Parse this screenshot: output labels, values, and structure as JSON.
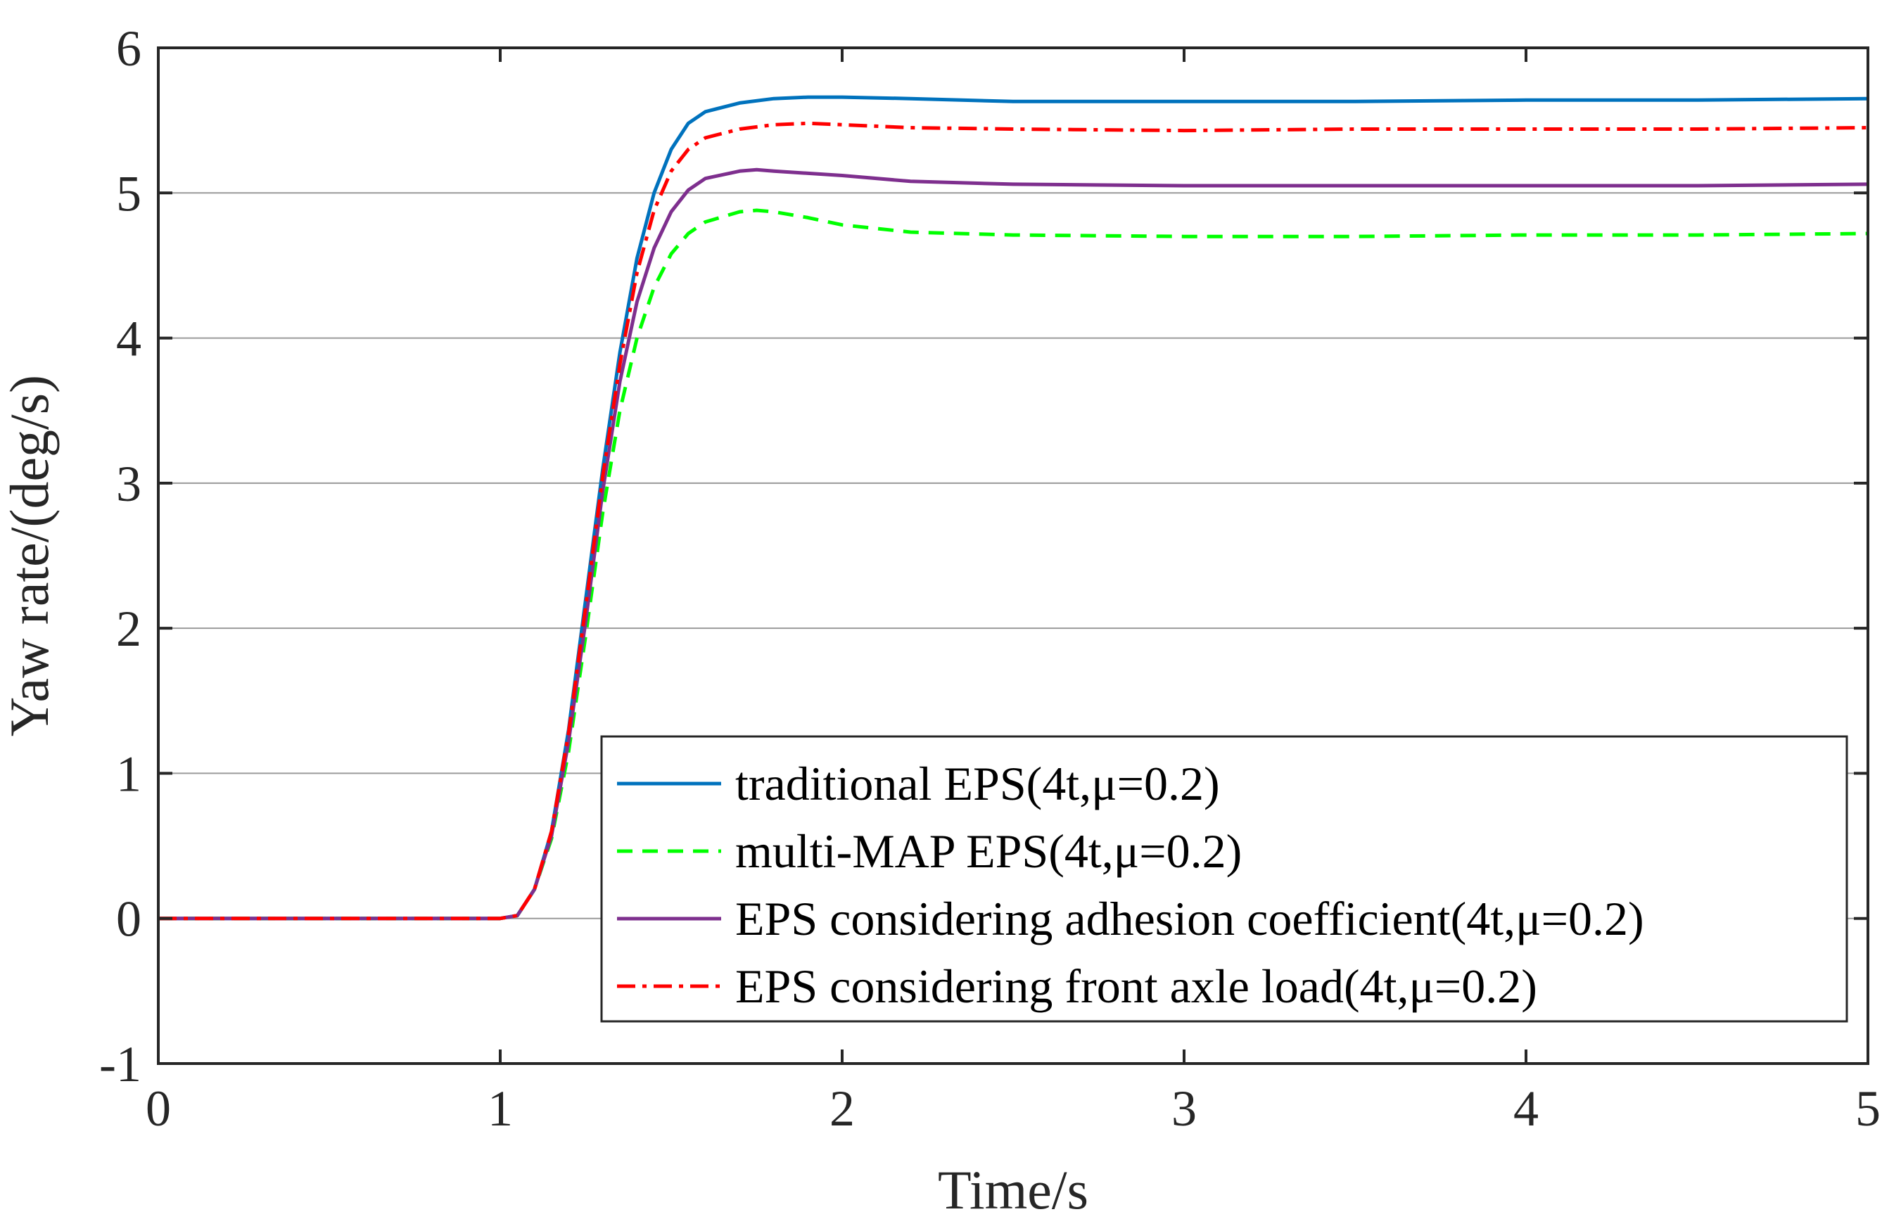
{
  "chart_data": {
    "type": "line",
    "xlabel": "Time/s",
    "ylabel": "Yaw rate/(deg/s)",
    "xlim": [
      0,
      5
    ],
    "ylim": [
      -1,
      6
    ],
    "xticks": [
      0,
      1,
      2,
      3,
      4,
      5
    ],
    "xtick_labels": [
      "0",
      "1",
      "2",
      "3",
      "4",
      "5"
    ],
    "yticks": [
      -1,
      0,
      1,
      2,
      3,
      4,
      5,
      6
    ],
    "ytick_labels": [
      "-1",
      "0",
      "1",
      "2",
      "3",
      "4",
      "5",
      "6"
    ],
    "legend_position": "bottom-right",
    "series": [
      {
        "name": "traditional EPS(4t,μ=0.2)",
        "color": "#0072BD",
        "style": "solid",
        "points": [
          [
            0,
            0
          ],
          [
            1.0,
            0
          ],
          [
            1.05,
            0.02
          ],
          [
            1.1,
            0.2
          ],
          [
            1.15,
            0.6
          ],
          [
            1.2,
            1.3
          ],
          [
            1.25,
            2.2
          ],
          [
            1.3,
            3.1
          ],
          [
            1.35,
            3.9
          ],
          [
            1.4,
            4.55
          ],
          [
            1.45,
            5.0
          ],
          [
            1.5,
            5.3
          ],
          [
            1.55,
            5.48
          ],
          [
            1.6,
            5.56
          ],
          [
            1.7,
            5.62
          ],
          [
            1.8,
            5.65
          ],
          [
            1.9,
            5.66
          ],
          [
            2.0,
            5.66
          ],
          [
            2.2,
            5.65
          ],
          [
            2.5,
            5.63
          ],
          [
            3.0,
            5.63
          ],
          [
            3.5,
            5.63
          ],
          [
            4.0,
            5.64
          ],
          [
            4.5,
            5.64
          ],
          [
            5.0,
            5.65
          ]
        ]
      },
      {
        "name": "multi-MAP EPS(4t,μ=0.2)",
        "color": "#00FF00",
        "style": "dashed",
        "points": [
          [
            0,
            0
          ],
          [
            1.0,
            0
          ],
          [
            1.05,
            0.02
          ],
          [
            1.1,
            0.2
          ],
          [
            1.15,
            0.55
          ],
          [
            1.2,
            1.15
          ],
          [
            1.25,
            1.95
          ],
          [
            1.3,
            2.8
          ],
          [
            1.35,
            3.5
          ],
          [
            1.4,
            4.0
          ],
          [
            1.45,
            4.35
          ],
          [
            1.5,
            4.58
          ],
          [
            1.55,
            4.72
          ],
          [
            1.6,
            4.8
          ],
          [
            1.7,
            4.87
          ],
          [
            1.75,
            4.88
          ],
          [
            1.8,
            4.87
          ],
          [
            1.9,
            4.83
          ],
          [
            2.0,
            4.78
          ],
          [
            2.2,
            4.73
          ],
          [
            2.5,
            4.71
          ],
          [
            3.0,
            4.7
          ],
          [
            3.5,
            4.7
          ],
          [
            4.0,
            4.71
          ],
          [
            4.5,
            4.71
          ],
          [
            5.0,
            4.72
          ]
        ]
      },
      {
        "name": "EPS considering adhesion coefficient(4t,μ=0.2)",
        "color": "#7E2F8E",
        "style": "solid",
        "points": [
          [
            0,
            0
          ],
          [
            1.0,
            0
          ],
          [
            1.05,
            0.02
          ],
          [
            1.1,
            0.2
          ],
          [
            1.15,
            0.57
          ],
          [
            1.2,
            1.22
          ],
          [
            1.25,
            2.05
          ],
          [
            1.3,
            2.95
          ],
          [
            1.35,
            3.7
          ],
          [
            1.4,
            4.25
          ],
          [
            1.45,
            4.62
          ],
          [
            1.5,
            4.87
          ],
          [
            1.55,
            5.02
          ],
          [
            1.6,
            5.1
          ],
          [
            1.7,
            5.15
          ],
          [
            1.75,
            5.16
          ],
          [
            1.8,
            5.15
          ],
          [
            2.0,
            5.12
          ],
          [
            2.2,
            5.08
          ],
          [
            2.5,
            5.06
          ],
          [
            3.0,
            5.05
          ],
          [
            3.5,
            5.05
          ],
          [
            4.0,
            5.05
          ],
          [
            4.5,
            5.05
          ],
          [
            5.0,
            5.06
          ]
        ]
      },
      {
        "name": "EPS considering front axle load(4t,μ=0.2)",
        "color": "#FF0000",
        "style": "dashdot",
        "points": [
          [
            0,
            0
          ],
          [
            1.0,
            0
          ],
          [
            1.05,
            0.02
          ],
          [
            1.1,
            0.2
          ],
          [
            1.15,
            0.6
          ],
          [
            1.2,
            1.28
          ],
          [
            1.25,
            2.15
          ],
          [
            1.3,
            3.05
          ],
          [
            1.35,
            3.82
          ],
          [
            1.4,
            4.45
          ],
          [
            1.45,
            4.88
          ],
          [
            1.5,
            5.15
          ],
          [
            1.55,
            5.3
          ],
          [
            1.6,
            5.38
          ],
          [
            1.7,
            5.44
          ],
          [
            1.8,
            5.47
          ],
          [
            1.9,
            5.48
          ],
          [
            2.0,
            5.47
          ],
          [
            2.2,
            5.45
          ],
          [
            2.5,
            5.44
          ],
          [
            3.0,
            5.43
          ],
          [
            3.5,
            5.44
          ],
          [
            4.0,
            5.44
          ],
          [
            4.5,
            5.44
          ],
          [
            5.0,
            5.45
          ]
        ]
      }
    ]
  }
}
